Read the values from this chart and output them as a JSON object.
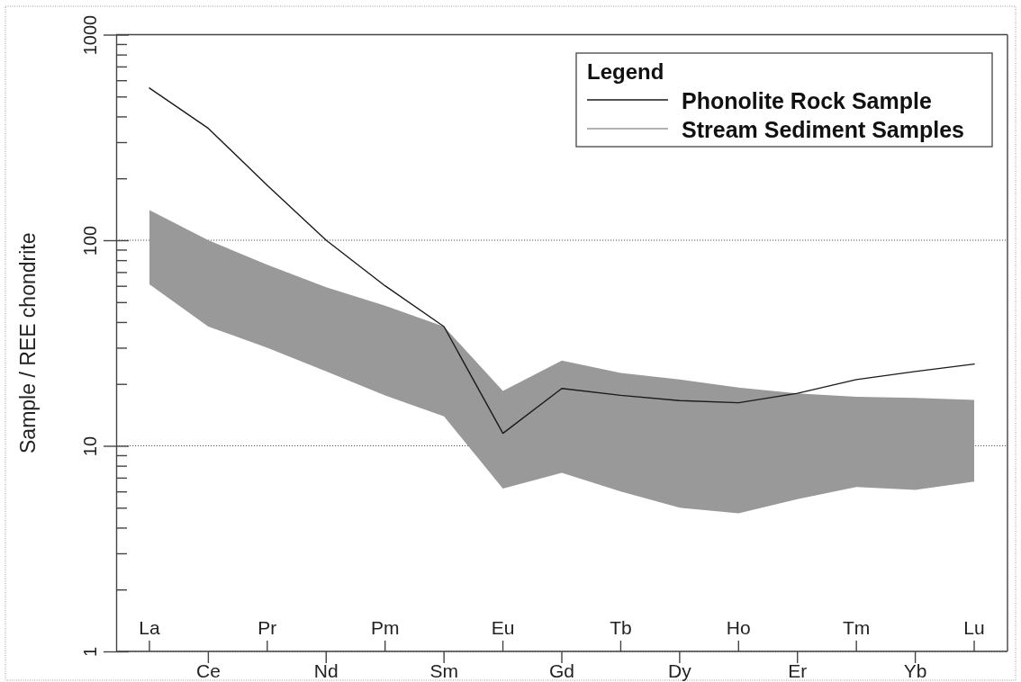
{
  "chart_data": {
    "type": "line",
    "ylabel": "Sample / REE chondrite",
    "legend_title": "Legend",
    "legend": "top right",
    "log": true,
    "grid": "y",
    "categories": [
      "La",
      "Ce",
      "Pr",
      "Nd",
      "Pm",
      "Sm",
      "Eu",
      "Gd",
      "Tb",
      "Dy",
      "Ho",
      "Er",
      "Tm",
      "Yb",
      "Lu"
    ],
    "ylim": [
      1,
      1000
    ],
    "yticks": [
      1,
      {
        "value": 2,
        "label": null
      },
      {
        "value": 3,
        "label": null
      },
      {
        "value": 4,
        "label": null
      },
      {
        "value": 5,
        "label": null
      },
      {
        "value": 6,
        "label": null
      },
      {
        "value": 7,
        "label": null
      },
      {
        "value": 8,
        "label": null
      },
      {
        "value": 9,
        "label": null
      },
      10,
      {
        "value": 20,
        "label": null
      },
      {
        "value": 30,
        "label": null
      },
      {
        "value": 40,
        "label": null
      },
      {
        "value": 50,
        "label": null
      },
      {
        "value": 60,
        "label": null
      },
      {
        "value": 70,
        "label": null
      },
      {
        "value": 80,
        "label": null
      },
      {
        "value": 90,
        "label": null
      },
      100,
      {
        "value": 200,
        "label": null
      },
      {
        "value": 300,
        "label": null
      },
      {
        "value": 400,
        "label": null
      },
      {
        "value": 500,
        "label": null
      },
      {
        "value": 600,
        "label": null
      },
      {
        "value": 700,
        "label": null
      },
      {
        "value": 800,
        "label": null
      },
      {
        "value": 900,
        "label": null
      },
      1000
    ],
    "series": [
      {
        "name": "Phonolite Rock Sample",
        "color": "#1a1a1a",
        "values": [
          550,
          350,
          185,
          100,
          60,
          38,
          11.5,
          19,
          17.6,
          16.6,
          16.2,
          18,
          21,
          23,
          25
        ]
      },
      {
        "name": "Stream Sediment Samples",
        "color": "#999999",
        "values": [
          null,
          null,
          null,
          null,
          null,
          null,
          null,
          null,
          null,
          null,
          null,
          null,
          null,
          null,
          null
        ],
        "lower": [
          61,
          38,
          30,
          23,
          17.6,
          13.9,
          6.2,
          7.4,
          6,
          5,
          4.7,
          5.5,
          6.3,
          6.1,
          6.7
        ],
        "upper": [
          140,
          100,
          76,
          59,
          48,
          38,
          18.5,
          26,
          22.6,
          21,
          19.2,
          18,
          17.3,
          17.1,
          16.7
        ]
      }
    ]
  }
}
